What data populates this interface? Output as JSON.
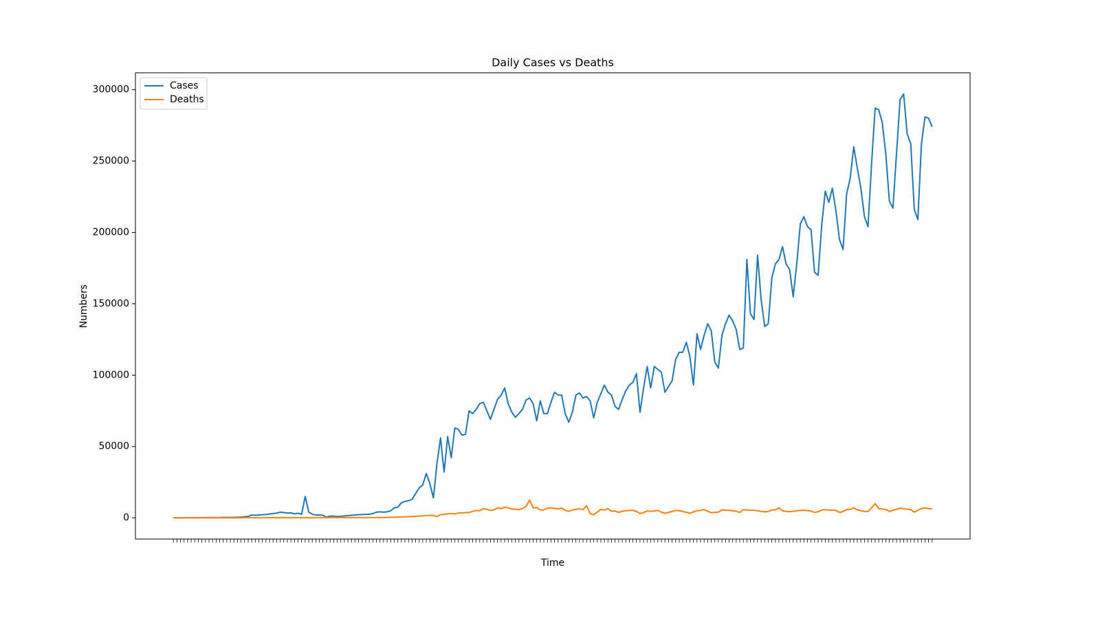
{
  "chart_data": {
    "type": "line",
    "title": "Daily Cases vs Deaths",
    "x_label": "Time",
    "y_label": "Numbers",
    "categories": [
      null,
      null,
      null,
      null,
      null,
      null,
      null,
      null,
      null,
      null,
      null,
      null,
      null,
      null,
      null,
      null,
      null,
      null,
      null,
      null,
      null,
      null,
      null,
      null,
      null,
      null,
      null,
      null,
      null,
      null,
      null,
      null,
      null,
      null,
      null,
      null,
      null,
      null,
      null,
      null,
      null,
      null,
      null,
      null,
      null,
      null,
      null,
      null,
      null,
      null,
      null,
      null,
      null,
      null,
      null,
      null,
      null,
      null,
      null,
      null,
      null,
      null,
      null,
      null,
      null,
      null,
      null,
      null,
      null,
      null,
      null,
      null,
      null,
      null,
      null,
      null,
      null,
      null,
      null,
      null,
      null,
      null,
      null,
      null,
      null,
      null,
      null,
      null,
      null,
      null,
      null,
      null,
      null,
      null,
      null,
      null,
      null,
      null,
      null,
      null,
      null,
      null,
      null,
      null,
      null,
      null,
      null,
      null,
      null,
      null,
      null,
      null,
      null,
      null,
      null,
      null,
      null,
      null,
      null,
      null,
      null,
      null,
      null,
      null,
      null,
      null,
      null,
      null,
      null,
      null,
      null,
      null,
      null,
      null,
      null,
      null,
      null,
      null,
      null,
      null,
      null,
      null,
      null,
      null,
      null,
      null,
      null,
      null,
      null,
      null,
      null,
      null,
      null,
      null,
      null,
      null,
      null,
      null,
      null,
      null,
      null,
      null,
      null,
      null,
      null,
      null,
      null,
      null,
      null,
      null,
      null,
      null,
      null,
      null,
      null,
      null,
      null,
      null,
      null,
      null,
      null,
      null,
      null,
      null,
      null,
      null,
      null,
      null,
      null,
      null,
      null,
      null,
      null,
      null,
      null,
      null,
      null,
      null,
      null,
      null,
      null,
      null,
      null,
      null,
      null,
      null,
      null,
      null,
      null,
      null,
      null,
      null,
      null,
      null
    ],
    "series": [
      {
        "name": "Cases",
        "color": "#1f77b4",
        "values": [
          0,
          0,
          0,
          100,
          100,
          100,
          100,
          100,
          100,
          200,
          200,
          200,
          200,
          200,
          300,
          300,
          300,
          300,
          400,
          500,
          800,
          1000,
          2000,
          1800,
          2000,
          2200,
          2300,
          2700,
          3000,
          3300,
          4000,
          3700,
          3300,
          3500,
          2800,
          3200,
          2500,
          15000,
          4000,
          2500,
          2000,
          2000,
          1800,
          500,
          1200,
          1200,
          1000,
          1100,
          1300,
          1600,
          1800,
          2000,
          2200,
          2300,
          2500,
          2500,
          3000,
          4000,
          4200,
          4000,
          4200,
          5000,
          7000,
          7500,
          10500,
          11500,
          12000,
          13000,
          17000,
          21000,
          23000,
          31000,
          24000,
          14000,
          38000,
          56000,
          32000,
          57000,
          42000,
          63000,
          62000,
          58000,
          58500,
          75000,
          73000,
          76000,
          80000,
          81000,
          75000,
          69000,
          76000,
          83000,
          86000,
          91000,
          80000,
          74000,
          70500,
          73000,
          76000,
          82500,
          84000,
          80000,
          68000,
          82000,
          73000,
          73000,
          81000,
          88000,
          86000,
          86000,
          73000,
          67000,
          74000,
          86000,
          87500,
          84000,
          85000,
          82000,
          70000,
          81000,
          87000,
          93000,
          88000,
          86000,
          78000,
          76000,
          83000,
          89000,
          93000,
          95000,
          101000,
          74000,
          91000,
          106000,
          91000,
          106000,
          104000,
          102000,
          88000,
          92000,
          96000,
          111000,
          116000,
          116000,
          123000,
          113000,
          93000,
          129000,
          118000,
          128000,
          136000,
          131000,
          109000,
          105000,
          128000,
          136000,
          142000,
          138000,
          132000,
          118000,
          119000,
          181000,
          143000,
          139000,
          184000,
          153000,
          134000,
          136000,
          168000,
          178000,
          181000,
          190000,
          178000,
          174000,
          155000,
          178000,
          206000,
          211000,
          204000,
          202000,
          172000,
          170000,
          205000,
          229000,
          221000,
          231000,
          215000,
          195000,
          188000,
          227000,
          238000,
          260000,
          245000,
          231000,
          211000,
          204000,
          248000,
          287000,
          286000,
          277000,
          255000,
          222000,
          217000,
          255000,
          293000,
          297000,
          269000,
          262000,
          216000,
          209000,
          262000,
          281000,
          280000,
          274000
        ]
      },
      {
        "name": "Deaths",
        "color": "#ff7f0e",
        "values": [
          0,
          0,
          0,
          0,
          0,
          0,
          0,
          0,
          0,
          0,
          0,
          0,
          0,
          0,
          0,
          0,
          0,
          0,
          0,
          0,
          100,
          100,
          100,
          100,
          100,
          100,
          100,
          100,
          100,
          100,
          100,
          100,
          100,
          100,
          100,
          100,
          100,
          100,
          100,
          100,
          200,
          200,
          200,
          200,
          200,
          200,
          200,
          200,
          200,
          200,
          200,
          200,
          200,
          200,
          200,
          200,
          200,
          200,
          200,
          200,
          300,
          400,
          400,
          500,
          600,
          700,
          800,
          900,
          1000,
          1200,
          1400,
          1600,
          1800,
          1500,
          1000,
          2200,
          2500,
          2800,
          3000,
          2700,
          3400,
          3500,
          3600,
          3800,
          4500,
          5200,
          5000,
          6500,
          6000,
          5200,
          5600,
          7000,
          6500,
          7500,
          7000,
          6200,
          6000,
          5800,
          6500,
          8000,
          12500,
          7000,
          7200,
          5500,
          5600,
          6800,
          7000,
          6600,
          6200,
          6800,
          5200,
          4600,
          5500,
          6000,
          6300,
          5800,
          8500,
          3000,
          2200,
          4000,
          6000,
          5500,
          6500,
          4500,
          4800,
          3800,
          4600,
          5000,
          5200,
          5300,
          4500,
          3000,
          3600,
          4900,
          4500,
          4800,
          5200,
          4000,
          3200,
          3800,
          4500,
          5200,
          5000,
          4500,
          3800,
          3200,
          4200,
          5000,
          5200,
          5800,
          4600,
          3600,
          3800,
          4000,
          5600,
          5300,
          5300,
          5000,
          4600,
          3800,
          5800,
          5500,
          5400,
          5300,
          5000,
          4500,
          4200,
          4400,
          5500,
          5600,
          7000,
          5000,
          4500,
          4300,
          4600,
          5000,
          5200,
          5300,
          5100,
          4800,
          3800,
          4200,
          5500,
          5700,
          5400,
          5500,
          5200,
          3800,
          4500,
          5800,
          5900,
          7000,
          5600,
          5000,
          4500,
          4400,
          7000,
          10000,
          6500,
          6200,
          5900,
          4500,
          5300,
          6000,
          6800,
          6300,
          6100,
          5800,
          4000,
          5300,
          6500,
          6900,
          6500,
          6300
        ]
      }
    ],
    "ylim": [
      -14850,
      311850
    ],
    "yticks": [
      0,
      50000,
      100000,
      150000,
      200000,
      250000,
      300000
    ],
    "grid": false,
    "legend": "upper left"
  }
}
